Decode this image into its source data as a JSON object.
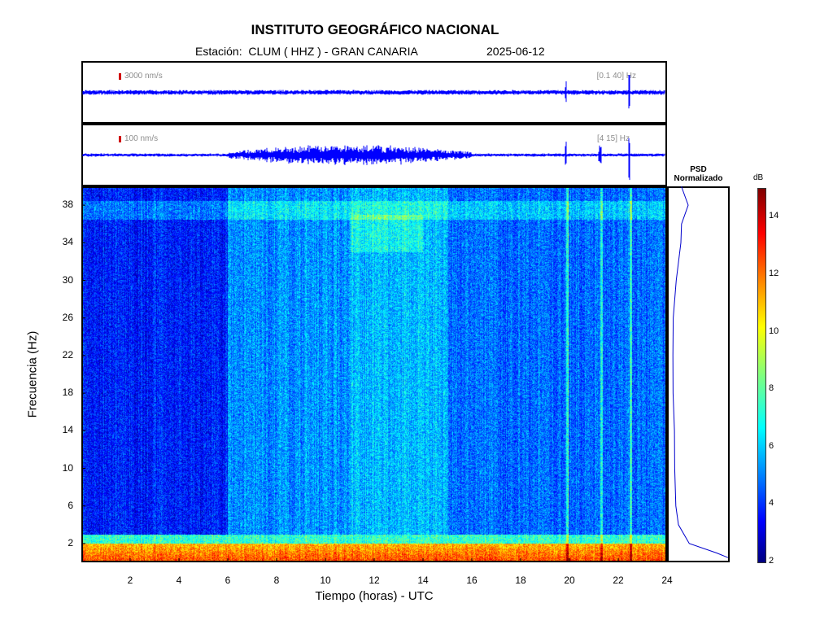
{
  "header": {
    "title": "INSTITUTO GEOGRÁFICO NACIONAL",
    "station": "Estación:  CLUM ( HHZ ) - GRAN CANARIA",
    "date": "2025-06-12"
  },
  "waveforms": [
    {
      "scale_label": "3000 nm/s",
      "band_label": "[0.1 40] Hz"
    },
    {
      "scale_label": "100 nm/s",
      "band_label": "[4 15] Hz"
    }
  ],
  "psd": {
    "title_line1": "PSD",
    "title_line2": "Normalizado"
  },
  "colorbar": {
    "unit": "dB",
    "min": 2,
    "max": 15,
    "ticks": [
      "2",
      "4",
      "6",
      "8",
      "10",
      "12",
      "14"
    ]
  },
  "chart_data": {
    "type": "heatmap",
    "title": "INSTITUTO GEOGRÁFICO NACIONAL",
    "xlabel": "Tiempo (horas) - UTC",
    "ylabel": "Frecuencia  (Hz)",
    "xlim": [
      0,
      24
    ],
    "ylim": [
      0,
      40
    ],
    "xticks": [
      "2",
      "4",
      "6",
      "8",
      "10",
      "12",
      "14",
      "16",
      "18",
      "20",
      "22",
      "24"
    ],
    "yticks": [
      "2",
      "6",
      "10",
      "14",
      "18",
      "22",
      "26",
      "30",
      "34",
      "38"
    ],
    "approx_levels_db": [
      {
        "hours": [
          0,
          6
        ],
        "freq_hz": [
          2,
          40
        ],
        "db": 4
      },
      {
        "hours": [
          6,
          11
        ],
        "freq_hz": [
          2,
          40
        ],
        "db": 5.5
      },
      {
        "hours": [
          11,
          15
        ],
        "freq_hz": [
          2,
          40
        ],
        "db": 6
      },
      {
        "hours": [
          15,
          24
        ],
        "freq_hz": [
          2,
          40
        ],
        "db": 5
      },
      {
        "hours": [
          0,
          24
        ],
        "freq_hz": [
          0,
          2
        ],
        "db": 11
      }
    ],
    "events_hours": [
      19.9,
      21.3,
      22.5
    ],
    "psd_normalized_profile": [
      {
        "f": 0.5,
        "v": 1.0
      },
      {
        "f": 1,
        "v": 0.85
      },
      {
        "f": 2,
        "v": 0.35
      },
      {
        "f": 4,
        "v": 0.18
      },
      {
        "f": 6,
        "v": 0.13
      },
      {
        "f": 10,
        "v": 0.1
      },
      {
        "f": 14,
        "v": 0.09
      },
      {
        "f": 18,
        "v": 0.08
      },
      {
        "f": 22,
        "v": 0.07
      },
      {
        "f": 26,
        "v": 0.08
      },
      {
        "f": 30,
        "v": 0.14
      },
      {
        "f": 34,
        "v": 0.2
      },
      {
        "f": 36,
        "v": 0.24
      },
      {
        "f": 38,
        "v": 0.3
      },
      {
        "f": 40,
        "v": 0.2
      }
    ]
  }
}
